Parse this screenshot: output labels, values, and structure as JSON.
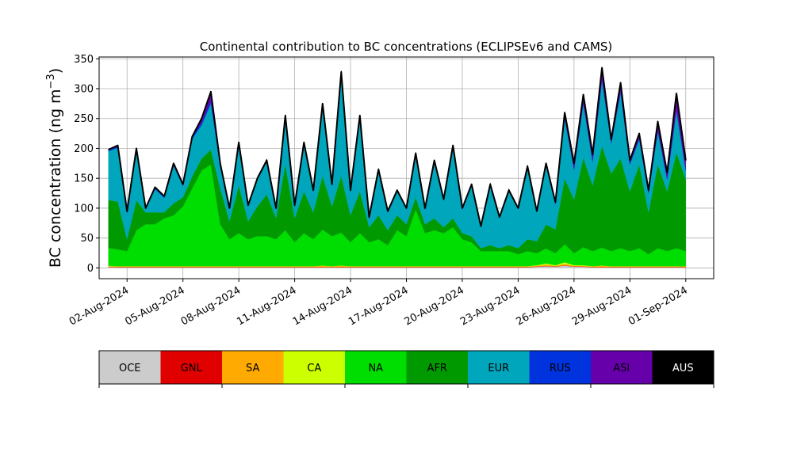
{
  "chart_data": {
    "type": "area",
    "title": "Continental contribution to BC concentrations (ECLIPSEv6 and CAMS)",
    "xlabel": "",
    "ylabel_main": "BC concentration (ng m",
    "ylabel_sup": "−3",
    "ylabel_close": ")",
    "ylim": [
      -18,
      353
    ],
    "yticks": [
      0,
      50,
      100,
      150,
      200,
      250,
      300,
      350
    ],
    "grid": true,
    "x_range": [
      "2024-07-31T12:00",
      "2024-09-02T12:00"
    ],
    "xtick_dates": [
      "2024-08-02",
      "2024-08-05",
      "2024-08-08",
      "2024-08-11",
      "2024-08-14",
      "2024-08-17",
      "2024-08-20",
      "2024-08-23",
      "2024-08-26",
      "2024-08-29",
      "2024-09-01"
    ],
    "xtick_labels": [
      "02-Aug-2024",
      "05-Aug-2024",
      "08-Aug-2024",
      "11-Aug-2024",
      "14-Aug-2024",
      "17-Aug-2024",
      "20-Aug-2024",
      "23-Aug-2024",
      "26-Aug-2024",
      "29-Aug-2024",
      "01-Sep-2024"
    ],
    "x": [
      "2024-08-01T00:00",
      "2024-08-01T12:00",
      "2024-08-02T00:00",
      "2024-08-02T12:00",
      "2024-08-03T00:00",
      "2024-08-03T12:00",
      "2024-08-04T00:00",
      "2024-08-04T12:00",
      "2024-08-05T00:00",
      "2024-08-05T12:00",
      "2024-08-06T00:00",
      "2024-08-06T12:00",
      "2024-08-07T00:00",
      "2024-08-07T12:00",
      "2024-08-08T00:00",
      "2024-08-08T12:00",
      "2024-08-09T00:00",
      "2024-08-09T12:00",
      "2024-08-10T00:00",
      "2024-08-10T12:00",
      "2024-08-11T00:00",
      "2024-08-11T12:00",
      "2024-08-12T00:00",
      "2024-08-12T12:00",
      "2024-08-13T00:00",
      "2024-08-13T12:00",
      "2024-08-14T00:00",
      "2024-08-14T12:00",
      "2024-08-15T00:00",
      "2024-08-15T12:00",
      "2024-08-16T00:00",
      "2024-08-16T12:00",
      "2024-08-17T00:00",
      "2024-08-17T12:00",
      "2024-08-18T00:00",
      "2024-08-18T12:00",
      "2024-08-19T00:00",
      "2024-08-19T12:00",
      "2024-08-20T00:00",
      "2024-08-20T12:00",
      "2024-08-21T00:00",
      "2024-08-21T12:00",
      "2024-08-22T00:00",
      "2024-08-22T12:00",
      "2024-08-23T00:00",
      "2024-08-23T12:00",
      "2024-08-24T00:00",
      "2024-08-24T12:00",
      "2024-08-25T00:00",
      "2024-08-25T12:00",
      "2024-08-26T00:00",
      "2024-08-26T12:00",
      "2024-08-27T00:00",
      "2024-08-27T12:00",
      "2024-08-28T00:00",
      "2024-08-28T12:00",
      "2024-08-29T00:00",
      "2024-08-29T12:00",
      "2024-08-30T00:00",
      "2024-08-30T12:00",
      "2024-08-31T00:00",
      "2024-08-31T12:00",
      "2024-09-01T00:00"
    ],
    "total": [
      198,
      205,
      95,
      200,
      100,
      135,
      120,
      175,
      140,
      220,
      250,
      295,
      175,
      100,
      210,
      105,
      150,
      180,
      100,
      255,
      105,
      210,
      130,
      275,
      140,
      328,
      130,
      255,
      85,
      165,
      95,
      130,
      100,
      192,
      100,
      180,
      115,
      205,
      100,
      140,
      70,
      140,
      85,
      130,
      100,
      170,
      95,
      175,
      110,
      260,
      175,
      290,
      190,
      335,
      215,
      310,
      180,
      225,
      130,
      245,
      160,
      292,
      180
    ],
    "series": [
      {
        "name": "OCE",
        "color": "#cccccc",
        "values": [
          1.5,
          1,
          1,
          1,
          1,
          1,
          1,
          1,
          1,
          1,
          1,
          1,
          1,
          1,
          1,
          1,
          1,
          1,
          1,
          1,
          1,
          1,
          1,
          1,
          1,
          1,
          1,
          1,
          1,
          1,
          1,
          1,
          1,
          1,
          1,
          1,
          1,
          1,
          1,
          1,
          1,
          1,
          1,
          1,
          1,
          1,
          2,
          3,
          2,
          4,
          2,
          2,
          1,
          1,
          1,
          1,
          1,
          1,
          1,
          1,
          1,
          1,
          1
        ]
      },
      {
        "name": "GNL",
        "color": "#e00000",
        "values": [
          0.5,
          0.5,
          0.5,
          0.5,
          0.5,
          0.5,
          0.5,
          0.5,
          0.5,
          0.5,
          0.5,
          0.5,
          0.5,
          0.5,
          0.5,
          0.5,
          0.5,
          0.5,
          0.5,
          0.5,
          0.5,
          0.5,
          0.5,
          0.5,
          0.5,
          0.5,
          0.5,
          0.5,
          0.5,
          0.5,
          0.5,
          0.5,
          0.5,
          0.5,
          0.5,
          0.5,
          0.5,
          0.5,
          0.5,
          0.5,
          0.5,
          0.5,
          0.5,
          0.5,
          0.5,
          0.5,
          0.5,
          0.5,
          0.5,
          0.5,
          0.5,
          0.5,
          0.5,
          0.5,
          0.5,
          0.5,
          0.5,
          0.5,
          0.5,
          0.5,
          0.5,
          0.5,
          0.5
        ]
      },
      {
        "name": "SA",
        "color": "#ffaa00",
        "values": [
          1,
          1,
          1,
          1,
          1,
          1,
          1,
          1,
          1,
          1,
          1,
          1,
          1,
          1,
          1,
          1,
          1,
          1,
          1,
          1,
          1,
          1,
          1,
          2,
          1,
          2,
          1,
          1,
          1,
          1,
          1,
          1,
          1,
          1,
          1,
          1,
          1,
          1,
          1,
          1,
          1,
          1,
          1,
          1,
          1,
          1,
          1,
          2,
          1,
          2,
          1,
          1,
          1,
          2,
          1,
          1,
          1,
          1,
          1,
          1,
          1,
          1,
          1
        ]
      },
      {
        "name": "CA",
        "color": "#ccff00",
        "values": [
          0.5,
          0.5,
          0.5,
          0.5,
          0.5,
          0.5,
          0.5,
          0.5,
          0.5,
          0.5,
          0.5,
          0.5,
          0.5,
          0.5,
          0.5,
          0.5,
          0.5,
          0.5,
          0.5,
          0.5,
          0.5,
          0.5,
          0.5,
          0.5,
          0.5,
          0.5,
          0.5,
          0.5,
          0.5,
          0.5,
          0.5,
          0.5,
          0.5,
          0.5,
          0.5,
          0.5,
          0.5,
          0.5,
          0.5,
          0.5,
          0.5,
          0.5,
          0.5,
          0.5,
          0.5,
          0.5,
          1,
          2,
          1,
          3,
          1,
          1,
          0.5,
          0.5,
          0.5,
          0.5,
          0.5,
          0.5,
          0.5,
          0.5,
          0.5,
          0.5,
          0.5
        ]
      },
      {
        "name": "NA",
        "color": "#00dd00",
        "values": [
          30,
          28,
          25,
          60,
          70,
          70,
          80,
          85,
          100,
          130,
          160,
          170,
          70,
          45,
          55,
          45,
          50,
          50,
          45,
          60,
          40,
          55,
          45,
          60,
          50,
          55,
          40,
          55,
          40,
          45,
          35,
          60,
          50,
          95,
          55,
          60,
          55,
          65,
          45,
          40,
          25,
          25,
          25,
          25,
          20,
          25,
          20,
          25,
          20,
          30,
          20,
          30,
          25,
          30,
          25,
          30,
          25,
          30,
          20,
          30,
          25,
          30,
          25
        ]
      },
      {
        "name": "AFR",
        "color": "#009900",
        "values": [
          80,
          80,
          20,
          50,
          20,
          20,
          10,
          20,
          15,
          20,
          20,
          25,
          60,
          30,
          80,
          30,
          50,
          70,
          35,
          110,
          40,
          70,
          45,
          90,
          50,
          95,
          45,
          70,
          25,
          40,
          25,
          25,
          20,
          20,
          15,
          20,
          10,
          15,
          10,
          10,
          5,
          10,
          5,
          10,
          10,
          20,
          20,
          40,
          40,
          110,
          90,
          150,
          110,
          170,
          130,
          150,
          100,
          140,
          70,
          140,
          100,
          160,
          120
        ]
      },
      {
        "name": "EUR",
        "color": "#00a6bb",
        "values": [
          82,
          90,
          44,
          82,
          5,
          39,
          24,
          63,
          19,
          63,
          56,
          77,
          39,
          21,
          66,
          26,
          45,
          55,
          16,
          79,
          20,
          79,
          36,
          115,
          35,
          170,
          40,
          124,
          15,
          74,
          30,
          40,
          26,
          72,
          25,
          95,
          45,
          120,
          40,
          84,
          35,
          101,
          52,
          91,
          66,
          121,
          50,
          100,
          43,
          100,
          50,
          90,
          40,
          110,
          50,
          110,
          45,
          42,
          32,
          55,
          20,
          70,
          15
        ]
      },
      {
        "name": "RUS",
        "color": "#0033dd",
        "values": [
          2,
          2,
          2,
          3,
          2,
          2,
          2,
          3,
          2,
          3,
          4,
          5,
          3,
          2,
          4,
          2,
          3,
          3,
          2,
          3,
          2,
          3,
          3,
          4,
          3,
          4,
          2,
          3,
          2,
          3,
          2,
          2,
          1,
          2,
          2,
          2,
          2,
          2,
          2,
          2,
          2,
          2,
          1,
          2,
          1,
          2,
          1,
          2,
          1,
          2,
          2,
          3,
          2,
          3,
          2,
          3,
          2,
          3,
          2,
          3,
          2,
          3,
          2
        ]
      },
      {
        "name": "ASI",
        "color": "#6600aa",
        "values": [
          1,
          1,
          1,
          2,
          1,
          1,
          1,
          1,
          1,
          1,
          7,
          15,
          1,
          1,
          2,
          1,
          1,
          1,
          1,
          1,
          1,
          1,
          1,
          2,
          1,
          2,
          1,
          1,
          1,
          1,
          1,
          1,
          1,
          1,
          1,
          1,
          1,
          1,
          1,
          1,
          1,
          1,
          1,
          1,
          1,
          1,
          1,
          1,
          1,
          7,
          9,
          11,
          9,
          17,
          5,
          14,
          4,
          6,
          3,
          14,
          10,
          26,
          15
        ]
      },
      {
        "name": "AUS",
        "color": "#000000",
        "values": [
          0.5,
          0.5,
          0.5,
          0.5,
          0.5,
          0.5,
          0.5,
          0.5,
          0.5,
          0.5,
          0.5,
          0.5,
          0.5,
          0.5,
          0.5,
          0.5,
          0.5,
          0.5,
          0.5,
          0.5,
          0.5,
          0.5,
          0.5,
          0.5,
          0.5,
          0.5,
          0.5,
          0.5,
          0.5,
          0.5,
          0.5,
          0.5,
          0.5,
          0.5,
          0.5,
          0.5,
          0.5,
          0.5,
          0.5,
          0.5,
          0.5,
          0.5,
          0.5,
          0.5,
          0.5,
          0.5,
          0.5,
          0.5,
          0.5,
          0.5,
          0.5,
          0.5,
          0.5,
          0.5,
          0.5,
          0.5,
          0.5,
          0.5,
          0.5,
          0.5,
          0.5,
          0.5,
          0.5
        ]
      }
    ],
    "legend": {
      "placement": "bottom",
      "style": "colorbar",
      "entries": [
        "OCE",
        "GNL",
        "SA",
        "CA",
        "NA",
        "AFR",
        "EUR",
        "RUS",
        "ASI",
        "AUS"
      ],
      "colors": [
        "#cccccc",
        "#e00000",
        "#ffaa00",
        "#ccff00",
        "#00dd00",
        "#009900",
        "#00a6bb",
        "#0033dd",
        "#6600aa",
        "#000000"
      ],
      "text_colors": [
        "#000000",
        "#000000",
        "#000000",
        "#000000",
        "#000000",
        "#000000",
        "#000000",
        "#000000",
        "#000000",
        "#ffffff"
      ]
    },
    "total_line_color": "#000000"
  }
}
